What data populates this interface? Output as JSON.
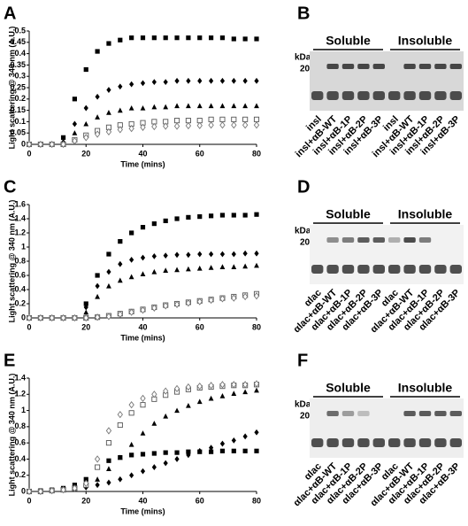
{
  "chart_data": [
    {
      "type": "scatter",
      "panel": "A",
      "xlabel": "Time (mins)",
      "ylabel": "Light scattering @ 340 nm (A.U.)",
      "xlim": [
        0,
        80
      ],
      "xticks": [
        0,
        20,
        40,
        60,
        80
      ],
      "ylim": [
        0,
        0.5
      ],
      "yticks": [
        0,
        0.05,
        0.1,
        0.15,
        0.2,
        0.25,
        0.3,
        0.35,
        0.4,
        0.45,
        0.5
      ],
      "grid": false,
      "x": [
        0,
        4,
        8,
        12,
        16,
        20,
        24,
        28,
        32,
        36,
        40,
        44,
        48,
        52,
        56,
        60,
        64,
        68,
        72,
        76,
        80
      ],
      "series": [
        {
          "marker": "square",
          "fill": true,
          "color": "#000000",
          "values": [
            0,
            0,
            0,
            0.03,
            0.2,
            0.33,
            0.41,
            0.445,
            0.46,
            0.47,
            0.47,
            0.47,
            0.47,
            0.47,
            0.47,
            0.47,
            0.47,
            0.47,
            0.465,
            0.465,
            0.465
          ]
        },
        {
          "marker": "diamond",
          "fill": true,
          "color": "#000000",
          "values": [
            0,
            0,
            0,
            0.01,
            0.09,
            0.16,
            0.21,
            0.24,
            0.255,
            0.265,
            0.27,
            0.275,
            0.275,
            0.28,
            0.28,
            0.28,
            0.28,
            0.28,
            0.28,
            0.28,
            0.28
          ]
        },
        {
          "marker": "triangle",
          "fill": true,
          "color": "#000000",
          "values": [
            0,
            0,
            0,
            0.005,
            0.05,
            0.09,
            0.12,
            0.14,
            0.15,
            0.16,
            0.16,
            0.165,
            0.165,
            0.17,
            0.17,
            0.17,
            0.17,
            0.17,
            0.17,
            0.17,
            0.17
          ]
        },
        {
          "marker": "square",
          "fill": false,
          "color": "#555555",
          "values": [
            0,
            0,
            0,
            0,
            0.02,
            0.04,
            0.06,
            0.075,
            0.085,
            0.09,
            0.095,
            0.1,
            0.1,
            0.105,
            0.105,
            0.105,
            0.11,
            0.11,
            0.11,
            0.11,
            0.11
          ]
        },
        {
          "marker": "diamond",
          "fill": false,
          "color": "#777777",
          "values": [
            0,
            0,
            0,
            0,
            0.015,
            0.03,
            0.045,
            0.055,
            0.065,
            0.07,
            0.075,
            0.078,
            0.08,
            0.08,
            0.082,
            0.083,
            0.085,
            0.085,
            0.085,
            0.085,
            0.085
          ]
        }
      ]
    },
    {
      "type": "scatter",
      "panel": "C",
      "xlabel": "Time (mins)",
      "ylabel": "Light scattering @ 340 nm (A.U.)",
      "xlim": [
        0,
        80
      ],
      "xticks": [
        0,
        20,
        40,
        60,
        80
      ],
      "ylim": [
        0,
        1.6
      ],
      "yticks": [
        0,
        0.2,
        0.4,
        0.6,
        0.8,
        1,
        1.2,
        1.4,
        1.6
      ],
      "grid": false,
      "x": [
        0,
        4,
        8,
        12,
        16,
        20,
        24,
        28,
        32,
        36,
        40,
        44,
        48,
        52,
        56,
        60,
        64,
        68,
        72,
        76,
        80
      ],
      "series": [
        {
          "marker": "square",
          "fill": true,
          "color": "#000000",
          "values": [
            0,
            0,
            0,
            0,
            0,
            0.2,
            0.6,
            0.9,
            1.08,
            1.2,
            1.28,
            1.33,
            1.37,
            1.4,
            1.42,
            1.43,
            1.44,
            1.45,
            1.45,
            1.45,
            1.46
          ]
        },
        {
          "marker": "diamond",
          "fill": true,
          "color": "#000000",
          "values": [
            0,
            0,
            0,
            0,
            0,
            0.15,
            0.45,
            0.65,
            0.76,
            0.82,
            0.85,
            0.87,
            0.88,
            0.89,
            0.89,
            0.9,
            0.9,
            0.9,
            0.9,
            0.91,
            0.91
          ]
        },
        {
          "marker": "triangle",
          "fill": true,
          "color": "#000000",
          "values": [
            0,
            0,
            0,
            0,
            0,
            0.08,
            0.3,
            0.45,
            0.53,
            0.58,
            0.62,
            0.65,
            0.67,
            0.68,
            0.69,
            0.7,
            0.71,
            0.72,
            0.72,
            0.73,
            0.74
          ]
        },
        {
          "marker": "square",
          "fill": false,
          "color": "#555555",
          "values": [
            0,
            0,
            0,
            0,
            0,
            0,
            0.01,
            0.03,
            0.06,
            0.09,
            0.12,
            0.15,
            0.18,
            0.2,
            0.22,
            0.24,
            0.26,
            0.28,
            0.3,
            0.32,
            0.34
          ]
        },
        {
          "marker": "diamond",
          "fill": false,
          "color": "#777777",
          "values": [
            0,
            0,
            0,
            0,
            0,
            0,
            0.01,
            0.02,
            0.05,
            0.08,
            0.11,
            0.14,
            0.17,
            0.19,
            0.21,
            0.23,
            0.25,
            0.27,
            0.28,
            0.3,
            0.31
          ]
        }
      ]
    },
    {
      "type": "scatter",
      "panel": "E",
      "xlabel": "Time (mins)",
      "ylabel": "Light scattering @ 340 nm (A.U.)",
      "xlim": [
        0,
        80
      ],
      "xticks": [
        0,
        20,
        40,
        60,
        80
      ],
      "ylim": [
        0,
        1.4
      ],
      "yticks": [
        0,
        0.2,
        0.4,
        0.6,
        0.8,
        1,
        1.2,
        1.4
      ],
      "grid": false,
      "x": [
        0,
        4,
        8,
        12,
        16,
        20,
        24,
        28,
        32,
        36,
        40,
        44,
        48,
        52,
        56,
        60,
        64,
        68,
        72,
        76,
        80
      ],
      "series": [
        {
          "marker": "square",
          "fill": true,
          "color": "#000000",
          "values": [
            0,
            0.01,
            0.02,
            0.04,
            0.08,
            0.15,
            0.3,
            0.38,
            0.42,
            0.45,
            0.46,
            0.47,
            0.48,
            0.48,
            0.49,
            0.49,
            0.49,
            0.5,
            0.5,
            0.5,
            0.5
          ]
        },
        {
          "marker": "diamond",
          "fill": true,
          "color": "#000000",
          "values": [
            0,
            0,
            0.01,
            0.02,
            0.03,
            0.05,
            0.08,
            0.11,
            0.15,
            0.2,
            0.25,
            0.3,
            0.35,
            0.4,
            0.45,
            0.5,
            0.54,
            0.59,
            0.63,
            0.68,
            0.73
          ]
        },
        {
          "marker": "triangle",
          "fill": true,
          "color": "#000000",
          "values": [
            0,
            0.01,
            0.02,
            0.03,
            0.05,
            0.08,
            0.15,
            0.28,
            0.42,
            0.58,
            0.72,
            0.84,
            0.93,
            1.0,
            1.06,
            1.11,
            1.15,
            1.18,
            1.21,
            1.23,
            1.25
          ]
        },
        {
          "marker": "square",
          "fill": false,
          "color": "#555555",
          "values": [
            0,
            0,
            0.01,
            0.02,
            0.04,
            0.08,
            0.3,
            0.6,
            0.82,
            0.97,
            1.07,
            1.14,
            1.19,
            1.23,
            1.26,
            1.28,
            1.29,
            1.3,
            1.31,
            1.31,
            1.32
          ]
        },
        {
          "marker": "diamond",
          "fill": false,
          "color": "#777777",
          "values": [
            0,
            0,
            0.01,
            0.02,
            0.04,
            0.1,
            0.4,
            0.75,
            0.95,
            1.07,
            1.15,
            1.2,
            1.24,
            1.27,
            1.29,
            1.3,
            1.31,
            1.32,
            1.32,
            1.32,
            1.33
          ]
        }
      ]
    }
  ],
  "gels": [
    {
      "panel": "B",
      "groups": [
        "Soluble",
        "Insoluble"
      ],
      "unit": "kDa",
      "marker": "20",
      "lanes": [
        "insl",
        "insl+αB-WT",
        "insl+αB-1P",
        "insl+αB-2P",
        "insl+αB-3P",
        "insl",
        "insl+αB-WT",
        "insl+αB-1P",
        "insl+αB-2P",
        "insl+αB-3P"
      ]
    },
    {
      "panel": "D",
      "groups": [
        "Soluble",
        "Insoluble"
      ],
      "unit": "kDa",
      "marker": "20",
      "lanes": [
        "αlac",
        "αlac+αB-WT",
        "αlac+αB-1P",
        "αlac+αB-2P",
        "αlac+αB-3P",
        "αlac",
        "αlac+αB-WT",
        "αlac+αB-1P",
        "αlac+αB-2P",
        "αlac+αB-3P"
      ]
    },
    {
      "panel": "F",
      "groups": [
        "Soluble",
        "Insoluble"
      ],
      "unit": "kDa",
      "marker": "20",
      "lanes": [
        "αlac",
        "αlac+αB-WT",
        "αlac+αB-1P",
        "αlac+αB-2P",
        "αlac+αB-3P",
        "αlac",
        "αlac+αB-WT",
        "αlac+αB-1P",
        "αlac+αB-2P",
        "αlac+αB-3P"
      ]
    }
  ]
}
